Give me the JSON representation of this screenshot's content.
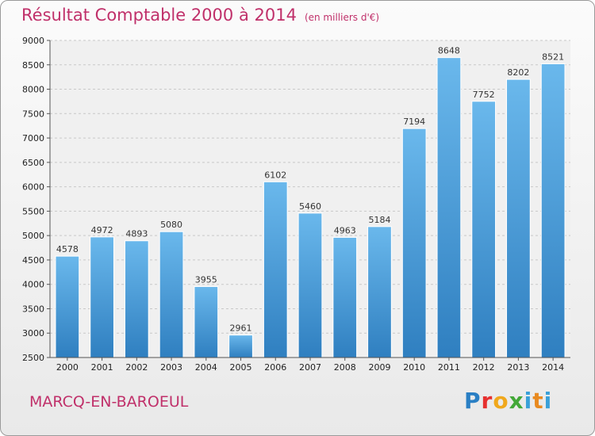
{
  "chart_data": {
    "type": "bar",
    "title": "Résultat Comptable 2000 à 2014",
    "unit_note": "(en milliers d'€)",
    "categories": [
      "2000",
      "2001",
      "2002",
      "2003",
      "2004",
      "2005",
      "2006",
      "2007",
      "2008",
      "2009",
      "2010",
      "2011",
      "2012",
      "2013",
      "2014"
    ],
    "values": [
      4578,
      4972,
      4893,
      5080,
      3955,
      2961,
      6102,
      5460,
      4963,
      5184,
      7194,
      8648,
      7752,
      8202,
      8521
    ],
    "ylim": [
      2500,
      9000
    ],
    "yticks": [
      2500,
      3000,
      3500,
      4000,
      4500,
      5000,
      5500,
      6000,
      6500,
      7000,
      7500,
      8000,
      8500,
      9000
    ],
    "grid": true,
    "bar_color_top": "#6ab8ec",
    "bar_color_bottom": "#2f7fc0"
  },
  "footer": {
    "city": "MARCQ-EN-BAROEUL",
    "logo": "Proxiti"
  }
}
